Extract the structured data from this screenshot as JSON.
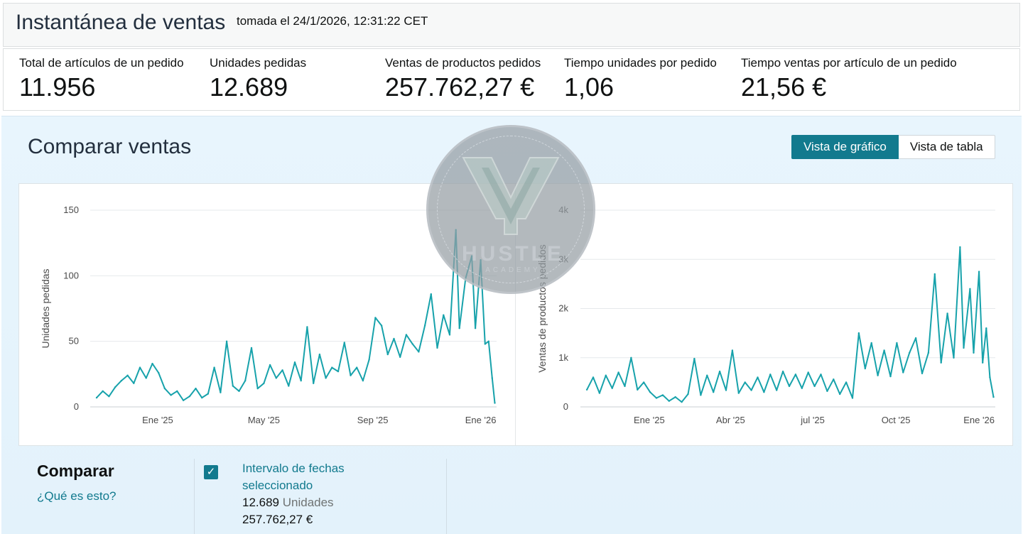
{
  "header": {
    "title": "Instantánea de ventas",
    "taken": "tomada el 24/1/2026, 12:31:22 CET"
  },
  "metrics": [
    {
      "label": "Total de artículos de un pedido",
      "value": "11.956"
    },
    {
      "label": "Unidades pedidas",
      "value": "12.689"
    },
    {
      "label": "Ventas de productos pedidos",
      "value": "257.762,27 €"
    },
    {
      "label": "Tiempo unidades por pedido",
      "value": "1,06"
    },
    {
      "label": "Tiempo ventas por artículo de un pedido",
      "value": "21,56 €"
    }
  ],
  "compare": {
    "title": "Comparar ventas",
    "view_chart": "Vista de gráfico",
    "view_table": "Vista de tabla"
  },
  "footer": {
    "title": "Comparar",
    "help_link": "¿Qué es esto?",
    "range_label": "Intervalo de fechas seleccionado",
    "units_value": "12.689",
    "units_label": "Unidades",
    "sales_value": "257.762,27 €"
  },
  "watermark": {
    "word": "HUSTLE",
    "sub": "ACADEMY"
  },
  "colors": {
    "accent": "#127a8e",
    "line": "#17a2ab",
    "panel": "#e6f4fc"
  },
  "chart_data": [
    {
      "type": "line",
      "title": "",
      "xlabel": "",
      "ylabel": "Unidades pedidas",
      "ylim": [
        0,
        150
      ],
      "yticks": [
        0,
        50,
        100,
        150
      ],
      "xticks": [
        {
          "date": "2025-01-01",
          "label": "Ene '25"
        },
        {
          "date": "2025-05-01",
          "label": "May '25"
        },
        {
          "date": "2025-09-01",
          "label": "Sep '25"
        },
        {
          "date": "2026-01-01",
          "label": "Ene '26"
        }
      ],
      "series": [
        {
          "points": [
            [
              "2024-10-24",
              7
            ],
            [
              "2024-10-31",
              12
            ],
            [
              "2024-11-07",
              8
            ],
            [
              "2024-11-14",
              15
            ],
            [
              "2024-11-21",
              20
            ],
            [
              "2024-11-28",
              24
            ],
            [
              "2024-12-05",
              18
            ],
            [
              "2024-12-12",
              30
            ],
            [
              "2024-12-19",
              22
            ],
            [
              "2024-12-26",
              33
            ],
            [
              "2025-01-02",
              26
            ],
            [
              "2025-01-09",
              14
            ],
            [
              "2025-01-16",
              9
            ],
            [
              "2025-01-23",
              12
            ],
            [
              "2025-01-30",
              5
            ],
            [
              "2025-02-06",
              8
            ],
            [
              "2025-02-13",
              14
            ],
            [
              "2025-02-20",
              7
            ],
            [
              "2025-02-27",
              10
            ],
            [
              "2025-03-06",
              30
            ],
            [
              "2025-03-13",
              11
            ],
            [
              "2025-03-20",
              50
            ],
            [
              "2025-03-27",
              16
            ],
            [
              "2025-04-03",
              12
            ],
            [
              "2025-04-10",
              20
            ],
            [
              "2025-04-17",
              45
            ],
            [
              "2025-04-24",
              14
            ],
            [
              "2025-05-01",
              18
            ],
            [
              "2025-05-08",
              32
            ],
            [
              "2025-05-15",
              22
            ],
            [
              "2025-05-22",
              28
            ],
            [
              "2025-05-29",
              16
            ],
            [
              "2025-06-05",
              34
            ],
            [
              "2025-06-12",
              20
            ],
            [
              "2025-06-19",
              61
            ],
            [
              "2025-06-26",
              18
            ],
            [
              "2025-07-03",
              40
            ],
            [
              "2025-07-10",
              22
            ],
            [
              "2025-07-17",
              30
            ],
            [
              "2025-07-24",
              27
            ],
            [
              "2025-07-31",
              49
            ],
            [
              "2025-08-07",
              24
            ],
            [
              "2025-08-14",
              30
            ],
            [
              "2025-08-21",
              20
            ],
            [
              "2025-08-28",
              36
            ],
            [
              "2025-09-04",
              68
            ],
            [
              "2025-09-11",
              62
            ],
            [
              "2025-09-18",
              40
            ],
            [
              "2025-09-25",
              52
            ],
            [
              "2025-10-02",
              38
            ],
            [
              "2025-10-09",
              55
            ],
            [
              "2025-10-16",
              48
            ],
            [
              "2025-10-23",
              42
            ],
            [
              "2025-10-30",
              62
            ],
            [
              "2025-11-06",
              86
            ],
            [
              "2025-11-13",
              45
            ],
            [
              "2025-11-20",
              70
            ],
            [
              "2025-11-27",
              55
            ],
            [
              "2025-12-04",
              135
            ],
            [
              "2025-12-08",
              60
            ],
            [
              "2025-12-15",
              98
            ],
            [
              "2025-12-22",
              115
            ],
            [
              "2025-12-26",
              60
            ],
            [
              "2026-01-01",
              112
            ],
            [
              "2026-01-06",
              48
            ],
            [
              "2026-01-10",
              50
            ],
            [
              "2026-01-14",
              22
            ],
            [
              "2026-01-17",
              3
            ]
          ]
        }
      ]
    },
    {
      "type": "line",
      "title": "",
      "xlabel": "",
      "ylabel": "Ventas de productos pedidos",
      "ylim": [
        0,
        4000
      ],
      "yticks": [
        {
          "value": 0,
          "label": "0"
        },
        {
          "value": 1000,
          "label": "1k"
        },
        {
          "value": 2000,
          "label": "2k"
        },
        {
          "value": 3000,
          "label": "3k"
        },
        {
          "value": 4000,
          "label": "4k"
        }
      ],
      "xticks": [
        {
          "date": "2025-01-01",
          "label": "Ene '25"
        },
        {
          "date": "2025-04-01",
          "label": "Abr '25"
        },
        {
          "date": "2025-07-01",
          "label": "jul '25"
        },
        {
          "date": "2025-10-01",
          "label": "Oct '25"
        },
        {
          "date": "2026-01-01",
          "label": "Ene '26"
        }
      ],
      "series": [
        {
          "points": [
            [
              "2024-10-24",
              350
            ],
            [
              "2024-10-31",
              600
            ],
            [
              "2024-11-07",
              280
            ],
            [
              "2024-11-14",
              640
            ],
            [
              "2024-11-21",
              380
            ],
            [
              "2024-11-28",
              700
            ],
            [
              "2024-12-05",
              420
            ],
            [
              "2024-12-12",
              1000
            ],
            [
              "2024-12-19",
              350
            ],
            [
              "2024-12-26",
              500
            ],
            [
              "2025-01-02",
              300
            ],
            [
              "2025-01-09",
              180
            ],
            [
              "2025-01-16",
              240
            ],
            [
              "2025-01-23",
              120
            ],
            [
              "2025-01-30",
              200
            ],
            [
              "2025-02-06",
              100
            ],
            [
              "2025-02-13",
              260
            ],
            [
              "2025-02-20",
              980
            ],
            [
              "2025-02-27",
              240
            ],
            [
              "2025-03-06",
              640
            ],
            [
              "2025-03-13",
              300
            ],
            [
              "2025-03-20",
              720
            ],
            [
              "2025-03-27",
              340
            ],
            [
              "2025-04-03",
              1150
            ],
            [
              "2025-04-10",
              280
            ],
            [
              "2025-04-17",
              500
            ],
            [
              "2025-04-24",
              340
            ],
            [
              "2025-05-01",
              600
            ],
            [
              "2025-05-08",
              300
            ],
            [
              "2025-05-15",
              660
            ],
            [
              "2025-05-22",
              340
            ],
            [
              "2025-05-29",
              720
            ],
            [
              "2025-06-05",
              420
            ],
            [
              "2025-06-12",
              660
            ],
            [
              "2025-06-19",
              380
            ],
            [
              "2025-06-26",
              700
            ],
            [
              "2025-07-03",
              420
            ],
            [
              "2025-07-10",
              660
            ],
            [
              "2025-07-17",
              320
            ],
            [
              "2025-07-24",
              560
            ],
            [
              "2025-07-31",
              260
            ],
            [
              "2025-08-07",
              500
            ],
            [
              "2025-08-14",
              180
            ],
            [
              "2025-08-21",
              1500
            ],
            [
              "2025-08-28",
              780
            ],
            [
              "2025-09-04",
              1300
            ],
            [
              "2025-09-11",
              640
            ],
            [
              "2025-09-18",
              1150
            ],
            [
              "2025-09-25",
              620
            ],
            [
              "2025-10-02",
              1300
            ],
            [
              "2025-10-09",
              700
            ],
            [
              "2025-10-16",
              1100
            ],
            [
              "2025-10-23",
              1400
            ],
            [
              "2025-10-30",
              680
            ],
            [
              "2025-11-06",
              1100
            ],
            [
              "2025-11-13",
              2700
            ],
            [
              "2025-11-20",
              900
            ],
            [
              "2025-11-27",
              1900
            ],
            [
              "2025-12-04",
              1000
            ],
            [
              "2025-12-11",
              3250
            ],
            [
              "2025-12-15",
              1200
            ],
            [
              "2025-12-22",
              2400
            ],
            [
              "2025-12-26",
              1100
            ],
            [
              "2026-01-01",
              2750
            ],
            [
              "2026-01-05",
              900
            ],
            [
              "2026-01-09",
              1600
            ],
            [
              "2026-01-13",
              600
            ],
            [
              "2026-01-17",
              200
            ]
          ]
        }
      ]
    }
  ]
}
